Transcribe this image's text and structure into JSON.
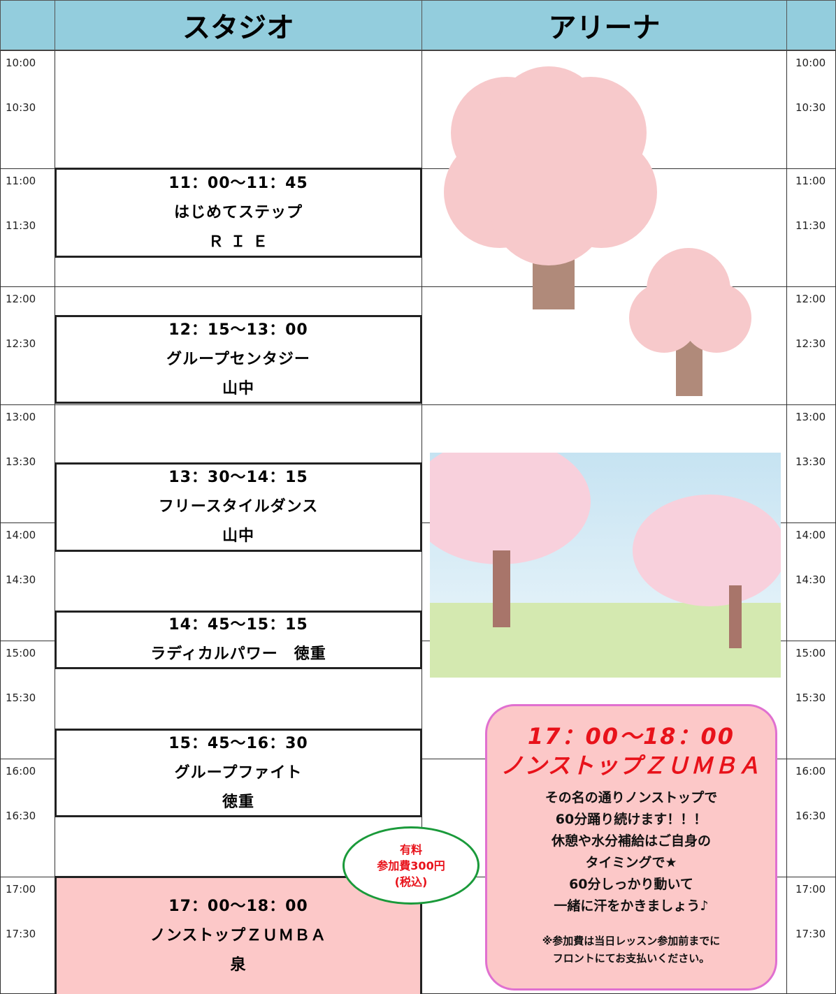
{
  "header": {
    "studio": "スタジオ",
    "arena": "アリーナ"
  },
  "times": [
    "10:00",
    "10:30",
    "11:00",
    "11:30",
    "12:00",
    "12:30",
    "13:00",
    "13:30",
    "14:00",
    "14:30",
    "15:00",
    "15:30",
    "16:00",
    "16:30",
    "17:00",
    "17:30"
  ],
  "studio_lessons": [
    {
      "lines": [
        "11：00～11：45",
        "はじめてステップ",
        "Ｒ Ｉ Ｅ"
      ]
    },
    {
      "lines": [
        "12：15～13：00",
        "グループセンタジー",
        "山中"
      ]
    },
    {
      "lines": [
        "13：30～14：15",
        "フリースタイルダンス",
        "山中"
      ]
    },
    {
      "lines": [
        "14：45～15：15",
        "ラディカルパワー　徳重"
      ]
    },
    {
      "lines": [
        "15：45～16：30",
        "グループファイト",
        "徳重"
      ]
    },
    {
      "lines": [
        "17：00～18：00",
        "ノンストップＺＵＭＢＡ",
        "泉"
      ]
    }
  ],
  "badge": {
    "lines": [
      "有料",
      "参加費300円",
      "(税込)"
    ]
  },
  "arena_event": {
    "title": [
      "17：00～18：00",
      "ノンストップＺＵＭＢＡ"
    ],
    "body": [
      "その名の通りノンストップで",
      "60分踊り続けます！！！",
      "休憩や水分補給はご自身の",
      "タイミングで★",
      "60分しっかり動いて",
      "一緒に汗をかきましょう♪"
    ],
    "note": [
      "※参加費は当日レッスン参加前までに",
      "フロントにてお支払いください。"
    ]
  }
}
